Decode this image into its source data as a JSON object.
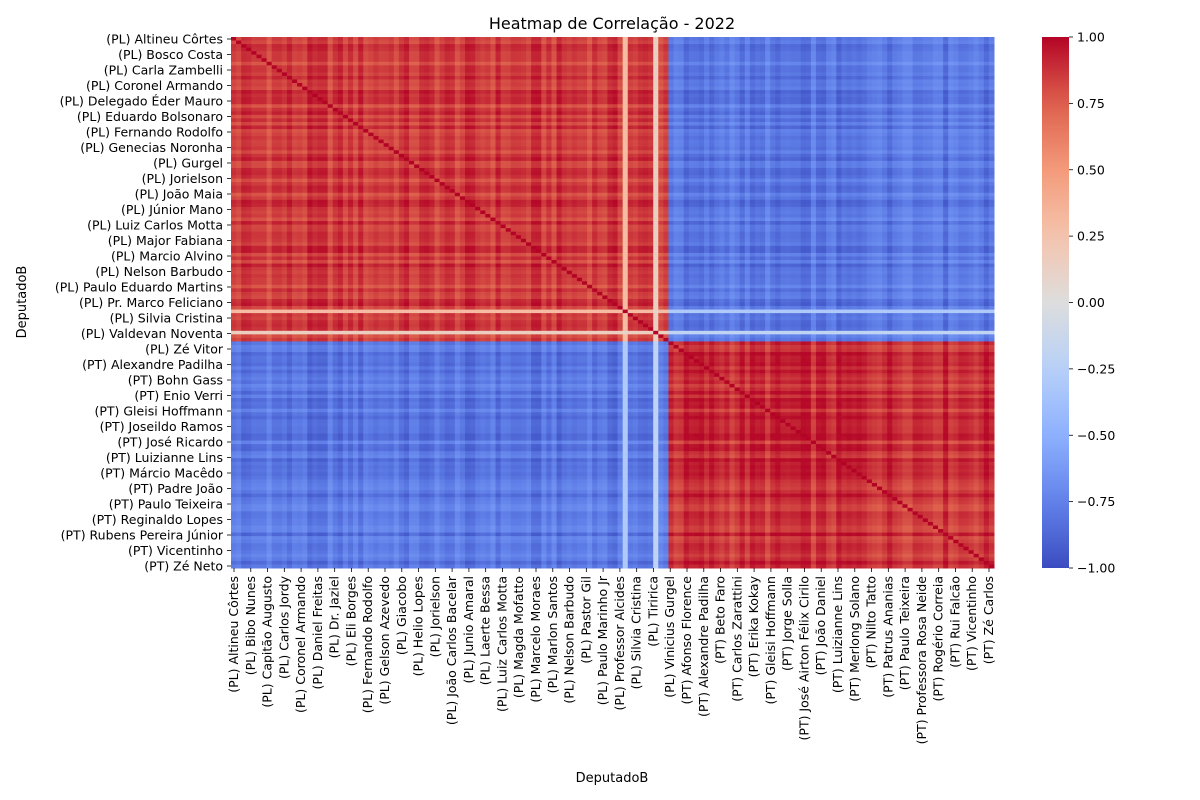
{
  "chart_data": {
    "type": "heatmap",
    "title": "Heatmap de Correlação - 2022",
    "xlabel": "DeputadoB",
    "ylabel": "DeputadoB",
    "colormap": "coolwarm",
    "value_range": [
      -1.0,
      1.0
    ],
    "colorbar": {
      "ticks": [
        1.0,
        0.75,
        0.5,
        0.25,
        0.0,
        -0.25,
        -0.5,
        -0.75,
        -1.0
      ],
      "tick_labels": [
        "1.00",
        "0.75",
        "0.50",
        "0.25",
        "0.00",
        "−0.25",
        "−0.50",
        "−0.75",
        "−1.00"
      ]
    },
    "matrix_size": 150,
    "groups": [
      {
        "party": "PL",
        "count": 86,
        "within_group_corr": 0.9,
        "between_group_corr": -0.95
      },
      {
        "party": "PT",
        "count": 64,
        "within_group_corr": 0.95,
        "between_group_corr": -0.95
      }
    ],
    "outliers": [
      {
        "label": "(PL) Tiririca",
        "within_party_corr": 0.15,
        "other_party_corr": -0.2
      },
      {
        "label": "(PL) Valdevan Noventa",
        "within_party_corr": 0.3,
        "other_party_corr": -0.3
      }
    ],
    "y_tick_labels": [
      "(PL) Altineu Côrtes",
      "(PL) Bosco Costa",
      "(PL) Carla Zambelli",
      "(PL) Coronel Armando",
      "(PL) Delegado Éder Mauro",
      "(PL) Eduardo Bolsonaro",
      "(PL) Fernando Rodolfo",
      "(PL) Genecias Noronha",
      "(PL) Gurgel",
      "(PL) Jorielson",
      "(PL) João Maia",
      "(PL) Júnior Mano",
      "(PL) Luiz Carlos Motta",
      "(PL) Major Fabiana",
      "(PL) Marcio Alvino",
      "(PL) Nelson Barbudo",
      "(PL) Paulo Eduardo Martins",
      "(PL) Pr. Marco Feliciano",
      "(PL) Silvia Cristina",
      "(PL) Valdevan Noventa",
      "(PL) Zé Vitor",
      "(PT) Alexandre Padilha",
      "(PT) Bohn Gass",
      "(PT) Enio Verri",
      "(PT) Gleisi Hoffmann",
      "(PT) Joseildo Ramos",
      "(PT) José Ricardo",
      "(PT) Luizianne Lins",
      "(PT) Márcio Macêdo",
      "(PT) Padre João",
      "(PT) Paulo Teixeira",
      "(PT) Reginaldo Lopes",
      "(PT) Rubens Pereira Júnior",
      "(PT) Vicentinho",
      "(PT) Zé Neto"
    ],
    "x_tick_labels": [
      "(PL) Altineu Côrtes",
      "(PL) Bibo Nunes",
      "(PL) Capitão Augusto",
      "(PL) Carlos Jordy",
      "(PL) Coronel Armando",
      "(PL) Daniel Freitas",
      "(PL) Dr. Jaziel",
      "(PL) Eli Borges",
      "(PL) Fernando Rodolfo",
      "(PL) Gelson Azevedo",
      "(PL) Giacobo",
      "(PL) Helio Lopes",
      "(PL) Jorielson",
      "(PL) João Carlos Bacelar",
      "(PL) Junio Amaral",
      "(PL) Laerte Bessa",
      "(PL) Luiz Carlos Motta",
      "(PL) Magda Mofatto",
      "(PL) Marcelo Moraes",
      "(PL) Marlon Santos",
      "(PL) Nelson Barbudo",
      "(PL) Pastor Gil",
      "(PL) Paulo Marinho Jr",
      "(PL) Professor Alcides",
      "(PL) Silvia Cristina",
      "(PL) Tiririca",
      "(PL) Vinicius Gurgel",
      "(PT) Afonso Florence",
      "(PT) Alexandre Padilha",
      "(PT) Beto Faro",
      "(PT) Carlos Zarattini",
      "(PT) Erika Kokay",
      "(PT) Gleisi Hoffmann",
      "(PT) Jorge Solla",
      "(PT) José Airton Félix Cirilo",
      "(PT) João Daniel",
      "(PT) Luizianne Lins",
      "(PT) Merlong Solano",
      "(PT) Nilto Tatto",
      "(PT) Patrus Ananias",
      "(PT) Paulo Teixeira",
      "(PT) Professora Rosa Neide",
      "(PT) Rogério Correia",
      "(PT) Rui Falcão",
      "(PT) Vicentinho",
      "(PT) Zé Carlos"
    ]
  }
}
